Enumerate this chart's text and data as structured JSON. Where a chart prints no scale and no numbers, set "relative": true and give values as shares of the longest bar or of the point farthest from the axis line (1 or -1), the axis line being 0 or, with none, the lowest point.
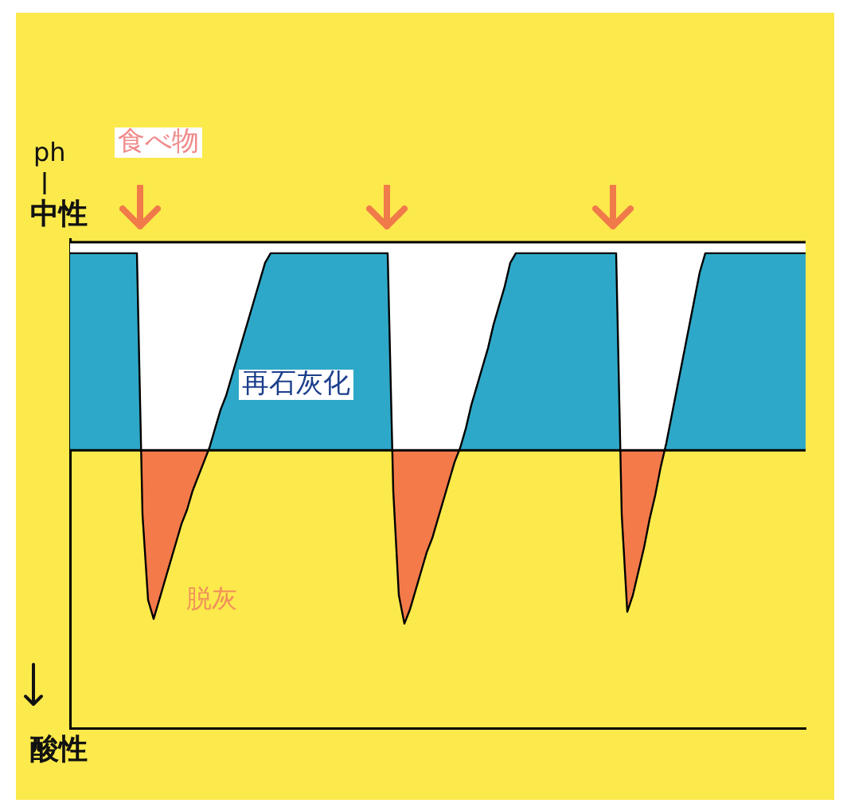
{
  "chart_data": {
    "type": "line",
    "relative": true,
    "ylabel": "ph",
    "annotations": [
      "食べ物",
      "中性",
      "酸性",
      "再石灰化",
      "脱灰"
    ],
    "categories": [
      null,
      null,
      null,
      null,
      null,
      null,
      null,
      null,
      null,
      null,
      null,
      null,
      null,
      null,
      null,
      null,
      null,
      null,
      null,
      null,
      null,
      null,
      null,
      null,
      null,
      null,
      null,
      null,
      null,
      null,
      null,
      null,
      null,
      null,
      null,
      null,
      null,
      null,
      null,
      null,
      null,
      null,
      null,
      null,
      null,
      null,
      null,
      null,
      null,
      null,
      null,
      null,
      null,
      null,
      null,
      null,
      null,
      null,
      null,
      null,
      null,
      null,
      null,
      null,
      null,
      null,
      null,
      null,
      null,
      null,
      null,
      null,
      null,
      null,
      null,
      null,
      null,
      null,
      null,
      null,
      null,
      null,
      null,
      null,
      null,
      null,
      null,
      null,
      null,
      null,
      null,
      null,
      null,
      null,
      null,
      null,
      null,
      null,
      null,
      null,
      null,
      null,
      null,
      null,
      null,
      null,
      null,
      null,
      null,
      null,
      null,
      null,
      null,
      null,
      null,
      null,
      null,
      null,
      null,
      null,
      null,
      null,
      null,
      null,
      null,
      null,
      null,
      null,
      null,
      null,
      null,
      null,
      null
    ],
    "series": [
      {
        "color": "#000000",
        "values": [
          1,
          1,
          1,
          1,
          1,
          1,
          1,
          1,
          1,
          1,
          1,
          1,
          1,
          0.45,
          0.27,
          0.23,
          0.27,
          0.31,
          0.35,
          0.39,
          0.43,
          0.46,
          0.5,
          0.53,
          0.56,
          0.59,
          0.63,
          0.67,
          0.7,
          0.74,
          0.78,
          0.82,
          0.86,
          0.9,
          0.94,
          0.98,
          1,
          1,
          1,
          1,
          1,
          1,
          1,
          1,
          1,
          1,
          1,
          1,
          1,
          1,
          1,
          1,
          1,
          1,
          1,
          1,
          1,
          1,
          0.5,
          0.28,
          0.22,
          0.25,
          0.29,
          0.33,
          0.37,
          0.4,
          0.44,
          0.48,
          0.52,
          0.56,
          0.59,
          0.63,
          0.68,
          0.72,
          0.76,
          0.8,
          0.85,
          0.89,
          0.93,
          0.98,
          1,
          1,
          1,
          1,
          1,
          1,
          1,
          1,
          1,
          1,
          1,
          1,
          1,
          1,
          1,
          1,
          1,
          1,
          1,
          0.45,
          0.245,
          0.28,
          0.33,
          0.38,
          0.44,
          0.49,
          0.55,
          0.6,
          0.66,
          0.72,
          0.78,
          0.84,
          0.9,
          0.96,
          1,
          1,
          1,
          1,
          1,
          1,
          1,
          1,
          1,
          1,
          1,
          1,
          1,
          1,
          1,
          1,
          1,
          1,
          1
        ]
      }
    ],
    "ref_lines": [
      {
        "axis": "y",
        "value": 0.585,
        "color": "#000000"
      }
    ],
    "bands": [
      {
        "axis": "y",
        "from": 0.585,
        "to": 1,
        "color": "#ffffff"
      }
    ]
  }
}
